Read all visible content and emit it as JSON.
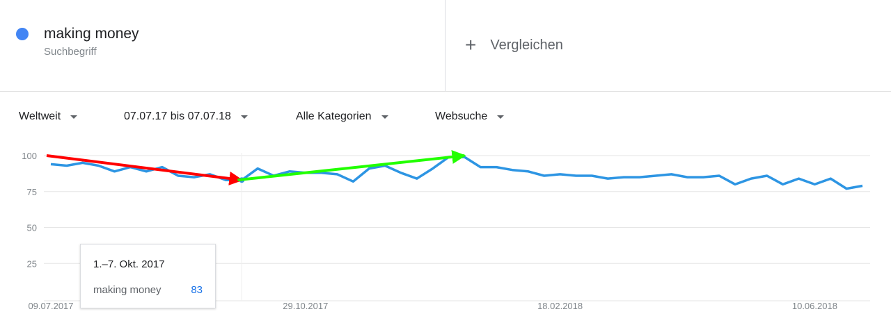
{
  "term": {
    "name": "making money",
    "subtitle": "Suchbegriff",
    "color": "#4285f4"
  },
  "compare": {
    "icon": "plus-icon",
    "label": "Vergleichen"
  },
  "filters": [
    {
      "label": "Weltweit"
    },
    {
      "label": "07.07.17 bis 07.07.18"
    },
    {
      "label": "Alle Kategorien"
    },
    {
      "label": "Websuche"
    }
  ],
  "tooltip": {
    "date": "1.–7. Okt. 2017",
    "term": "making money",
    "value": "83"
  },
  "chart_data": {
    "type": "line",
    "ylim": [
      0,
      100
    ],
    "yticks": [
      100,
      75,
      50,
      25
    ],
    "xtick_labels": [
      "09.07.2017",
      "29.10.2017",
      "18.02.2018",
      "10.06.2018"
    ],
    "grid": true,
    "series": [
      {
        "name": "making money",
        "color": "#2d95e3",
        "values": [
          94,
          93,
          95,
          93,
          89,
          92,
          89,
          92,
          86,
          85,
          87,
          83,
          83,
          91,
          86,
          89,
          88,
          88,
          87,
          82,
          91,
          93,
          88,
          84,
          91,
          99,
          99,
          92,
          92,
          90,
          89,
          86,
          87,
          86,
          86,
          84,
          85,
          85,
          86,
          87,
          85,
          85,
          86,
          80,
          84,
          86,
          80,
          84,
          80,
          84,
          77,
          79
        ]
      }
    ],
    "annotations": [
      {
        "type": "arrow",
        "color": "#ff0000",
        "from_week": 0,
        "from_value": 100,
        "to_week": 12,
        "to_value": 83
      },
      {
        "type": "arrow",
        "color": "#22ff00",
        "from_week": 12,
        "from_value": 83,
        "to_week": 26,
        "to_value": 100
      }
    ],
    "highlight_week": 12
  }
}
